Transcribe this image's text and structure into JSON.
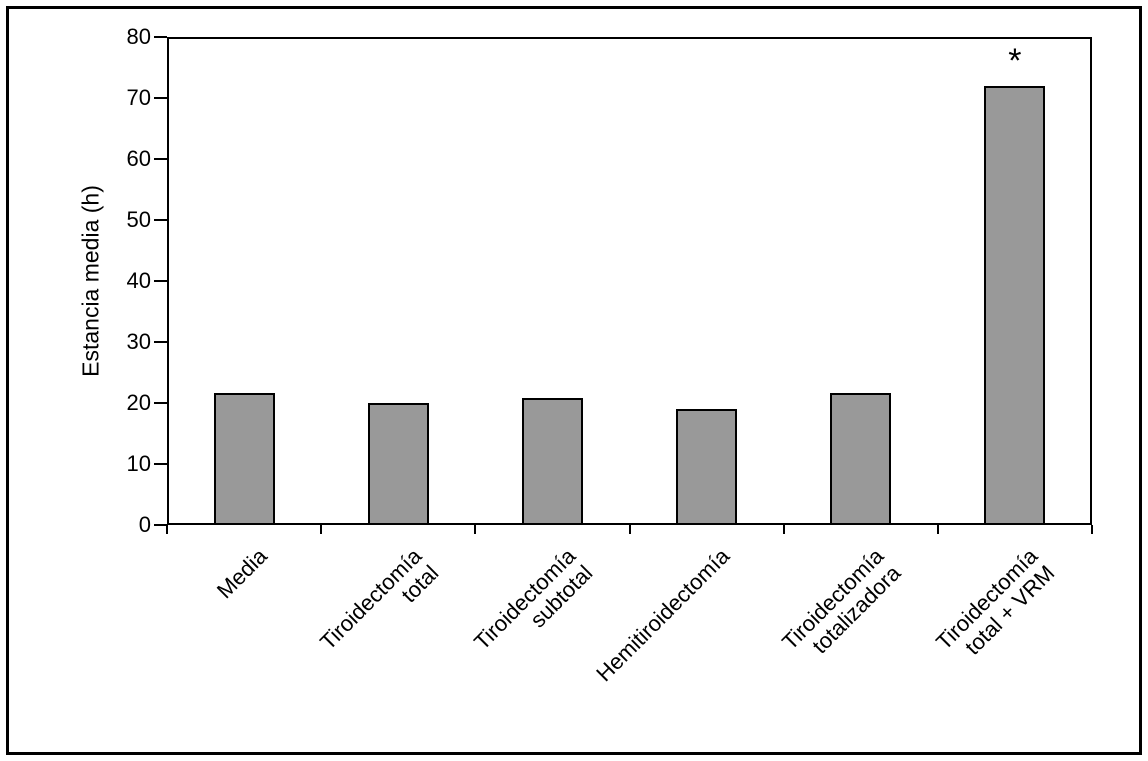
{
  "chart_data": {
    "type": "bar",
    "title": "",
    "ylabel": "Estancia media (h)",
    "xlabel": "",
    "ylim": [
      0,
      80
    ],
    "yticks": [
      0,
      10,
      20,
      30,
      40,
      50,
      60,
      70,
      80
    ],
    "grid": false,
    "legend": null,
    "categories": [
      "Media",
      "Tiroidectomía\ntotal",
      "Tiroidectomía\nsubtotal",
      "Hemitiroidectomía",
      "Tiroidectomía\ntotalizadora",
      "Tiroidectomía\ntotal + VRM"
    ],
    "values": [
      21.7,
      20.0,
      20.8,
      19.0,
      21.7,
      72.0
    ],
    "bar_color": "#999999",
    "bar_edge_color": "#000000",
    "annotations": [
      {
        "bar_index": 5,
        "text": "*"
      }
    ]
  }
}
